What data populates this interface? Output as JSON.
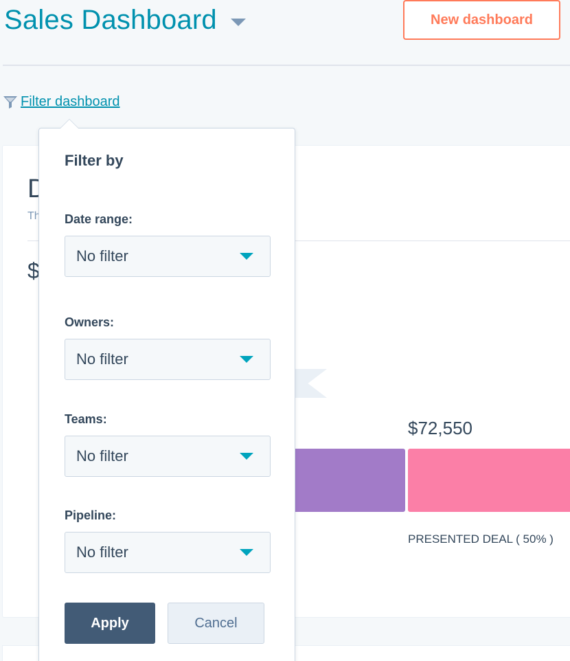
{
  "header": {
    "title": "Sales Dashboard",
    "new_dashboard_label": "New dashboard"
  },
  "filter_link": {
    "label": " Filter dashboard",
    "icon": "funnel-icon"
  },
  "card": {
    "title_partial": "D",
    "subtitle_partial": "Th",
    "total_partial": "$",
    "bar_value": "$72,550",
    "bar_label": "PRESENTED DEAL",
    "bar_label_pct": "( 50% )"
  },
  "filter_popover": {
    "heading": "Filter by",
    "fields": [
      {
        "label": "Date range:",
        "value": "No filter"
      },
      {
        "label": "Owners:",
        "value": "No filter"
      },
      {
        "label": "Teams:",
        "value": "No filter"
      },
      {
        "label": "Pipeline:",
        "value": "No filter"
      }
    ],
    "apply_label": "Apply",
    "cancel_label": "Cancel"
  },
  "colors": {
    "brand_teal": "#0091ae",
    "accent_orange": "#ff7a59",
    "bar_purple": "#a27bc8",
    "bar_pink": "#fb7fa7",
    "apply_bg": "#425b76"
  }
}
